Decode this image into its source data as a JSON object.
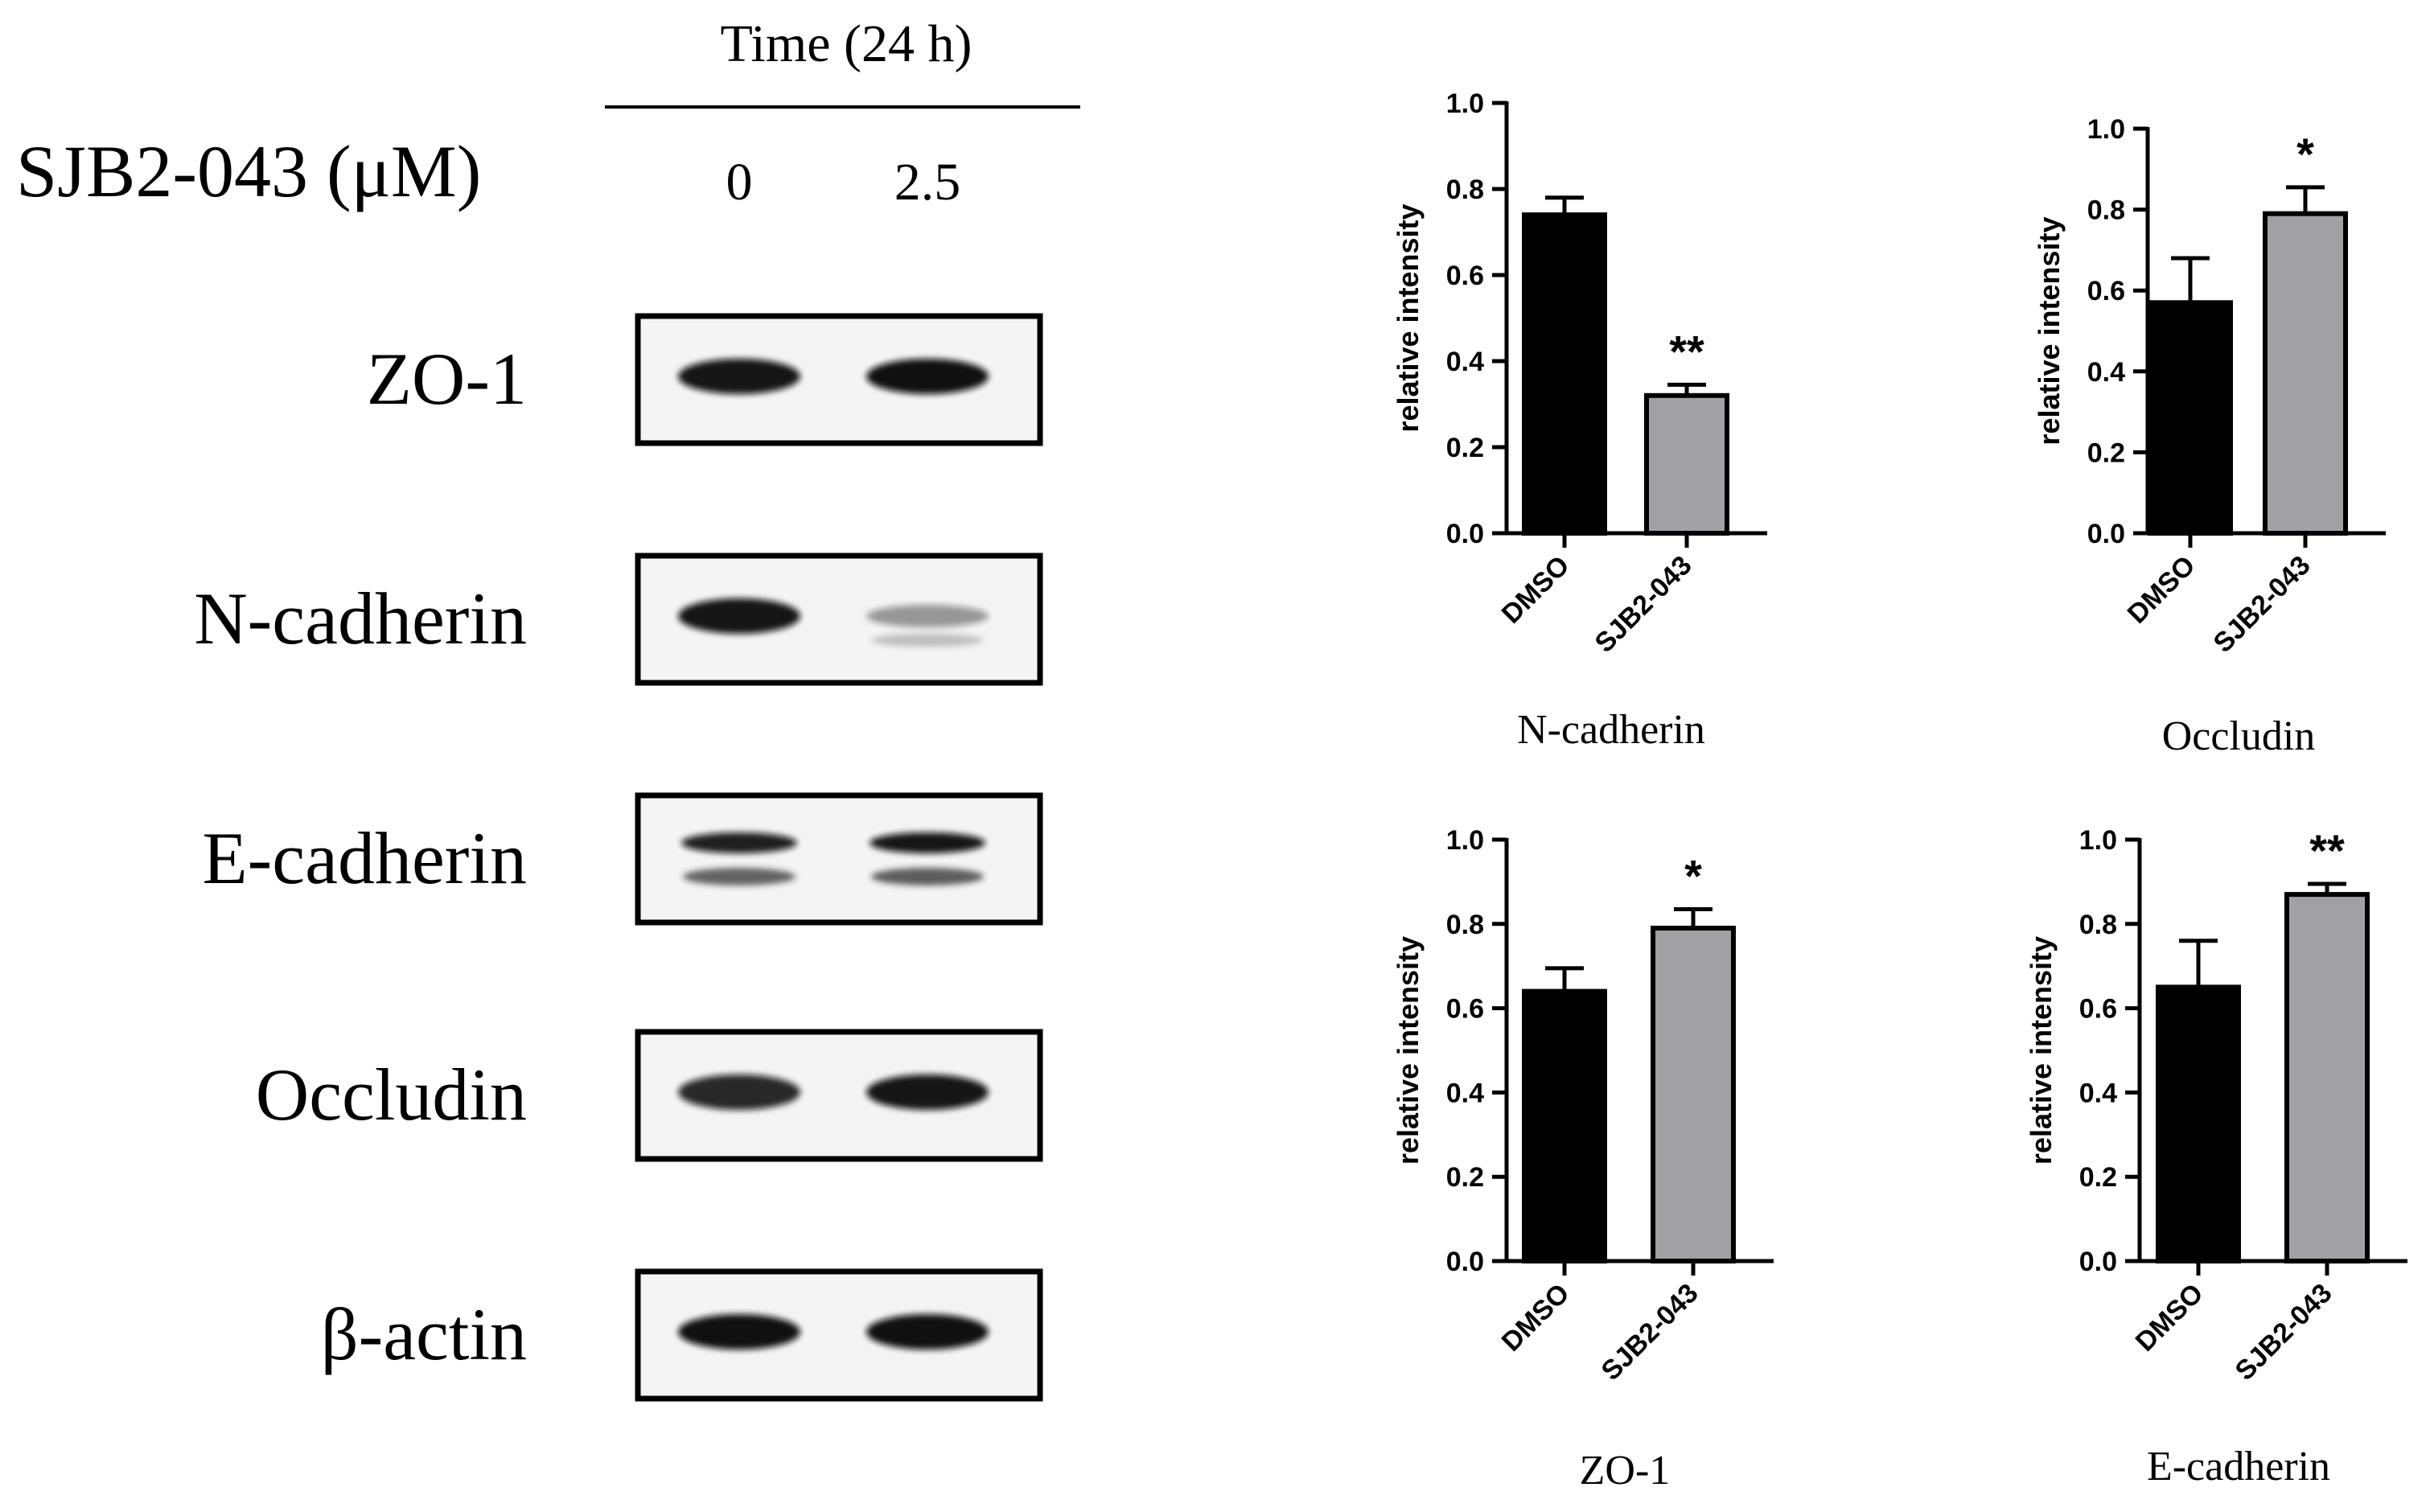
{
  "blot": {
    "time_label": "Time (24 h)",
    "treatment_label": "SJB2-043 (μM)",
    "doses": [
      "0",
      "2.5"
    ],
    "rows": [
      {
        "label": "ZO-1",
        "bands": [
          {
            "intensity": 0.95,
            "bands": 1
          },
          {
            "intensity": 0.98,
            "bands": 1
          }
        ]
      },
      {
        "label": "N-cadherin",
        "bands": [
          {
            "intensity": 0.95,
            "bands": 1
          },
          {
            "intensity": 0.25,
            "bands": 1
          }
        ]
      },
      {
        "label": "E-cadherin",
        "bands": [
          {
            "intensity": 0.9,
            "bands": 2
          },
          {
            "intensity": 0.95,
            "bands": 2
          }
        ]
      },
      {
        "label": "Occludin",
        "bands": [
          {
            "intensity": 0.85,
            "bands": 1
          },
          {
            "intensity": 0.95,
            "bands": 1
          }
        ]
      },
      {
        "label": "β-actin",
        "bands": [
          {
            "intensity": 0.98,
            "bands": 1
          },
          {
            "intensity": 0.98,
            "bands": 1
          }
        ]
      }
    ]
  },
  "chart_data": [
    {
      "type": "bar",
      "title": "N-cadherin",
      "ylabel": "relative intensity",
      "categories": [
        "DMSO",
        "SJB2-043"
      ],
      "values": [
        0.74,
        0.32
      ],
      "errors": [
        0.04,
        0.025
      ],
      "significance": [
        "",
        "**"
      ],
      "ylim": [
        0,
        1.0
      ],
      "yticks": [
        "0.0",
        "0.2",
        "0.4",
        "0.6",
        "0.8",
        "1.0"
      ],
      "bar_colors": [
        "#000000",
        "#a0a0a5"
      ]
    },
    {
      "type": "bar",
      "title": "Occludin",
      "ylabel": "relative intensity",
      "categories": [
        "DMSO",
        "SJB2-043"
      ],
      "values": [
        0.57,
        0.79
      ],
      "errors": [
        0.11,
        0.065
      ],
      "significance": [
        "",
        "*"
      ],
      "ylim": [
        0,
        1.0
      ],
      "yticks": [
        "0.0",
        "0.2",
        "0.4",
        "0.6",
        "0.8",
        "1.0"
      ],
      "bar_colors": [
        "#000000",
        "#a0a0a5"
      ]
    },
    {
      "type": "bar",
      "title": "ZO-1",
      "ylabel": "relative intensity",
      "categories": [
        "DMSO",
        "SJB2-043"
      ],
      "values": [
        0.64,
        0.79
      ],
      "errors": [
        0.055,
        0.045
      ],
      "significance": [
        "",
        "*"
      ],
      "ylim": [
        0,
        1.0
      ],
      "yticks": [
        "0.0",
        "0.2",
        "0.4",
        "0.6",
        "0.8",
        "1.0"
      ],
      "bar_colors": [
        "#000000",
        "#a0a0a5"
      ]
    },
    {
      "type": "bar",
      "title": "E-cadherin",
      "ylabel": "relative intensity",
      "categories": [
        "DMSO",
        "SJB2-043"
      ],
      "values": [
        0.65,
        0.87
      ],
      "errors": [
        0.11,
        0.025
      ],
      "significance": [
        "",
        "**"
      ],
      "ylim": [
        0,
        1.0
      ],
      "yticks": [
        "0.0",
        "0.2",
        "0.4",
        "0.6",
        "0.8",
        "1.0"
      ],
      "bar_colors": [
        "#000000",
        "#a0a0a5"
      ]
    }
  ]
}
